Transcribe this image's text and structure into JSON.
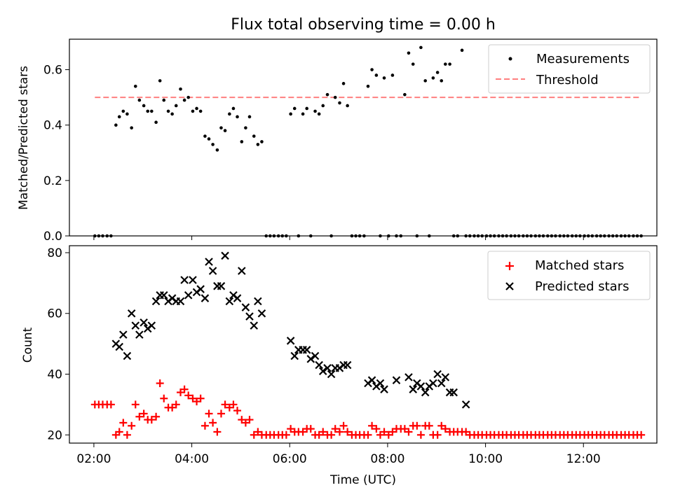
{
  "figure": {
    "title": "Flux total observing time = 0.00 h"
  },
  "chart_data": [
    {
      "type": "scatter",
      "panel": "top",
      "ylabel": "Matched/Predicted stars",
      "xlabel": "",
      "xlim": [
        1.5,
        13.5
      ],
      "ylim": [
        0.0,
        0.71
      ],
      "yticks": [
        0.0,
        0.2,
        0.4,
        0.6
      ],
      "ytick_labels": [
        "0.0",
        "0.2",
        "0.4",
        "0.6"
      ],
      "legend_position": "top-right",
      "series": [
        {
          "name": "Measurements",
          "style": "dot",
          "color": "#000000",
          "x": [
            2.02,
            2.1,
            2.18,
            2.27,
            2.35,
            2.45,
            2.52,
            2.6,
            2.68,
            2.77,
            2.85,
            2.93,
            3.02,
            3.1,
            3.18,
            3.27,
            3.35,
            3.43,
            3.52,
            3.6,
            3.68,
            3.77,
            3.85,
            3.93,
            4.02,
            4.1,
            4.18,
            4.27,
            4.35,
            4.43,
            4.52,
            4.6,
            4.68,
            4.77,
            4.85,
            4.93,
            5.02,
            5.1,
            5.18,
            5.27,
            5.35,
            5.43,
            5.52,
            5.6,
            5.68,
            5.77,
            5.85,
            5.93,
            6.02,
            6.1,
            6.18,
            6.27,
            6.35,
            6.43,
            6.52,
            6.6,
            6.68,
            6.77,
            6.85,
            6.93,
            7.02,
            7.1,
            7.18,
            7.27,
            7.35,
            7.43,
            7.52,
            7.6,
            7.68,
            7.77,
            7.85,
            7.93,
            8.02,
            8.1,
            8.18,
            8.27,
            8.35,
            8.43,
            8.52,
            8.6,
            8.68,
            8.77,
            8.85,
            8.93,
            9.02,
            9.1,
            9.18,
            9.27,
            9.35,
            9.43,
            9.52,
            9.6,
            9.68,
            9.77,
            9.85,
            9.93,
            10.02,
            10.1,
            10.18,
            10.27,
            10.35,
            10.43,
            10.52,
            10.6,
            10.68,
            10.77,
            10.85,
            10.93,
            11.02,
            11.1,
            11.18,
            11.27,
            11.35,
            11.43,
            11.52,
            11.6,
            11.68,
            11.77,
            11.85,
            11.93,
            12.02,
            12.1,
            12.18,
            12.27,
            12.35,
            12.43,
            12.52,
            12.6,
            12.68,
            12.77,
            12.85,
            12.93,
            13.02,
            13.1,
            13.18
          ],
          "y": [
            0,
            0,
            0,
            0,
            0,
            0.4,
            0.43,
            0.45,
            0.44,
            0.39,
            0.54,
            0.49,
            0.47,
            0.45,
            0.45,
            0.41,
            0.56,
            0.49,
            0.45,
            0.44,
            0.47,
            0.53,
            0.49,
            0.5,
            0.45,
            0.46,
            0.45,
            0.36,
            0.35,
            0.33,
            0.31,
            0.39,
            0.38,
            0.44,
            0.46,
            0.43,
            0.34,
            0.39,
            0.43,
            0.36,
            0.33,
            0.34,
            0,
            0,
            0,
            0,
            0,
            0,
            0.44,
            0.46,
            0,
            0.44,
            0.46,
            0,
            0.45,
            0.44,
            0.47,
            0.51,
            0,
            0.5,
            0.48,
            0.55,
            0.47,
            0,
            0,
            0,
            0,
            0.54,
            0.6,
            0.58,
            0,
            0.57,
            0,
            0.58,
            0,
            0,
            0.51,
            0.66,
            0.62,
            0,
            0.68,
            0.56,
            0,
            0.57,
            0.59,
            0.56,
            0.62,
            0.62,
            0,
            0,
            0.67,
            0,
            0,
            0,
            0,
            0,
            0,
            0,
            0,
            0,
            0,
            0,
            0,
            0,
            0,
            0,
            0,
            0,
            0,
            0,
            0,
            0,
            0,
            0,
            0,
            0,
            0,
            0,
            0,
            0,
            0,
            0,
            0,
            0,
            0,
            0,
            0,
            0,
            0,
            0,
            0,
            0,
            0,
            0,
            0
          ]
        },
        {
          "name": "Threshold",
          "style": "dashed-line",
          "color": "#ff7f7f",
          "x": [
            2.02,
            13.18
          ],
          "y": [
            0.5,
            0.5
          ]
        }
      ]
    },
    {
      "type": "scatter",
      "panel": "bottom",
      "ylabel": "Count",
      "xlabel": "Time (UTC)",
      "xlim": [
        1.5,
        13.5
      ],
      "ylim": [
        17.3,
        82.3
      ],
      "yticks": [
        20,
        40,
        60,
        80
      ],
      "ytick_labels": [
        "20",
        "40",
        "60",
        "80"
      ],
      "xticks": [
        2,
        4,
        6,
        8,
        10,
        12
      ],
      "xtick_labels": [
        "02:00",
        "04:00",
        "06:00",
        "08:00",
        "10:00",
        "12:00"
      ],
      "legend_position": "top-right",
      "series": [
        {
          "name": "Matched stars",
          "style": "plus",
          "color": "#ff0000",
          "x": [
            2.02,
            2.1,
            2.18,
            2.27,
            2.35,
            2.45,
            2.52,
            2.6,
            2.68,
            2.77,
            2.85,
            2.93,
            3.02,
            3.1,
            3.18,
            3.27,
            3.35,
            3.43,
            3.52,
            3.6,
            3.68,
            3.77,
            3.85,
            3.93,
            4.02,
            4.1,
            4.18,
            4.27,
            4.35,
            4.43,
            4.52,
            4.6,
            4.68,
            4.77,
            4.85,
            4.93,
            5.02,
            5.1,
            5.18,
            5.27,
            5.35,
            5.43,
            5.52,
            5.6,
            5.68,
            5.77,
            5.85,
            5.93,
            6.02,
            6.1,
            6.18,
            6.27,
            6.35,
            6.43,
            6.52,
            6.6,
            6.68,
            6.77,
            6.85,
            6.93,
            7.02,
            7.1,
            7.18,
            7.27,
            7.35,
            7.43,
            7.52,
            7.6,
            7.68,
            7.77,
            7.85,
            7.93,
            8.02,
            8.1,
            8.18,
            8.27,
            8.35,
            8.43,
            8.52,
            8.6,
            8.68,
            8.77,
            8.85,
            8.93,
            9.02,
            9.1,
            9.18,
            9.27,
            9.35,
            9.43,
            9.52,
            9.6,
            9.68,
            9.77,
            9.85,
            9.93,
            10.02,
            10.1,
            10.18,
            10.27,
            10.35,
            10.43,
            10.52,
            10.6,
            10.68,
            10.77,
            10.85,
            10.93,
            11.02,
            11.1,
            11.18,
            11.27,
            11.35,
            11.43,
            11.52,
            11.6,
            11.68,
            11.77,
            11.85,
            11.93,
            12.02,
            12.1,
            12.18,
            12.27,
            12.35,
            12.43,
            12.52,
            12.6,
            12.68,
            12.77,
            12.85,
            12.93,
            13.02,
            13.1,
            13.18
          ],
          "y": [
            30,
            30,
            30,
            30,
            30,
            20,
            21,
            24,
            20,
            23,
            30,
            26,
            27,
            25,
            25,
            26,
            37,
            32,
            29,
            29,
            30,
            34,
            35,
            33,
            32,
            31,
            32,
            23,
            27,
            24,
            21,
            27,
            30,
            29,
            30,
            28,
            25,
            24,
            25,
            20,
            21,
            20,
            20,
            20,
            20,
            20,
            20,
            20,
            22,
            21,
            21,
            21,
            22,
            22,
            20,
            20,
            21,
            20,
            20,
            22,
            21,
            23,
            21,
            20,
            20,
            20,
            20,
            20,
            23,
            22,
            20,
            21,
            20,
            21,
            22,
            22,
            22,
            21,
            23,
            23,
            20,
            23,
            23,
            20,
            20,
            23,
            22,
            21,
            21,
            21,
            21,
            21,
            20,
            20,
            20,
            20,
            20,
            20,
            20,
            20,
            20,
            20,
            20,
            20,
            20,
            20,
            20,
            20,
            20,
            20,
            20,
            20,
            20,
            20,
            20,
            20,
            20,
            20,
            20,
            20,
            20,
            20,
            20,
            20,
            20,
            20,
            20,
            20,
            20,
            20,
            20,
            20,
            20,
            20,
            20
          ]
        },
        {
          "name": "Predicted stars",
          "style": "x",
          "color": "#000000",
          "x": [
            2.45,
            2.52,
            2.6,
            2.68,
            2.77,
            2.85,
            2.93,
            3.02,
            3.1,
            3.18,
            3.27,
            3.35,
            3.43,
            3.52,
            3.6,
            3.68,
            3.77,
            3.85,
            3.93,
            4.02,
            4.1,
            4.18,
            4.27,
            4.35,
            4.43,
            4.52,
            4.6,
            4.68,
            4.77,
            4.85,
            4.93,
            5.02,
            5.1,
            5.18,
            5.27,
            5.35,
            5.43,
            6.02,
            6.1,
            6.18,
            6.27,
            6.35,
            6.43,
            6.52,
            6.6,
            6.68,
            6.77,
            6.85,
            6.93,
            7.02,
            7.1,
            7.18,
            7.6,
            7.68,
            7.77,
            7.85,
            7.93,
            8.18,
            8.43,
            8.52,
            8.6,
            8.68,
            8.77,
            8.85,
            8.93,
            9.02,
            9.1,
            9.18,
            9.27,
            9.35,
            9.6
          ],
          "y": [
            50,
            49,
            53,
            46,
            60,
            56,
            53,
            57,
            55,
            56,
            64,
            66,
            66,
            64,
            65,
            64,
            64,
            71,
            66,
            71,
            67,
            68,
            65,
            77,
            74,
            69,
            69,
            79,
            64,
            66,
            65,
            74,
            62,
            59,
            56,
            64,
            60,
            51,
            46,
            48,
            48,
            48,
            45,
            46,
            43,
            41,
            42,
            40,
            42,
            42,
            43,
            43,
            37,
            38,
            36,
            37,
            35,
            38,
            39,
            35,
            37,
            36,
            34,
            36,
            37,
            40,
            37,
            39,
            34,
            34,
            30
          ]
        }
      ]
    }
  ]
}
